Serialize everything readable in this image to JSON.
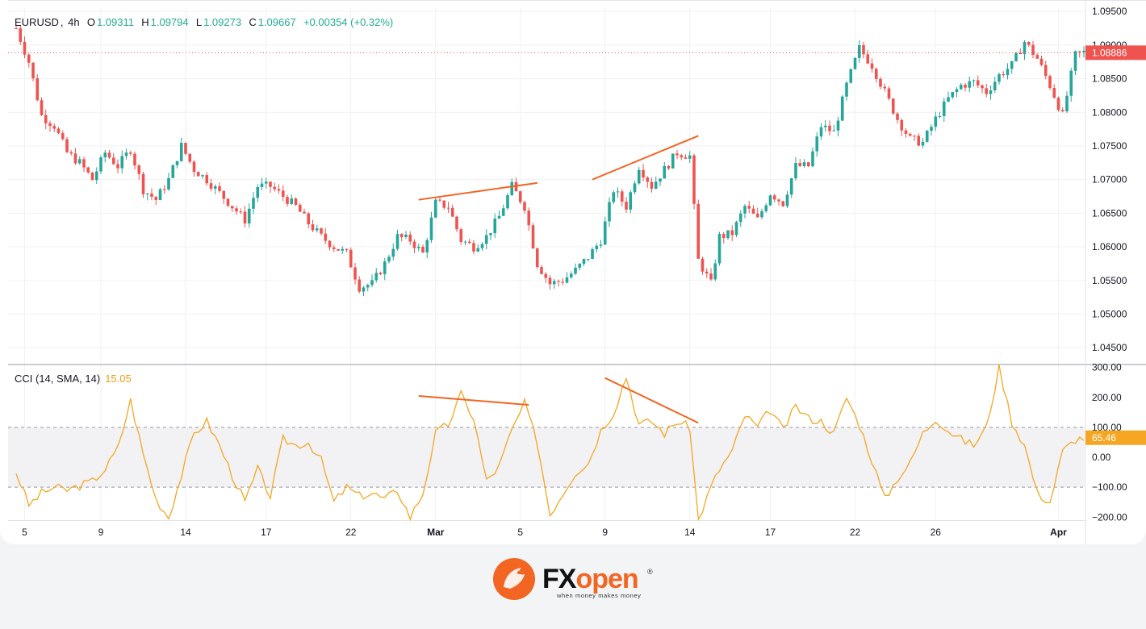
{
  "symbol": {
    "ticker": "EURUSD",
    "timeframe": "4h",
    "open_label": "O",
    "open": "1.09311",
    "high_label": "H",
    "high": "1.09794",
    "low_label": "L",
    "low": "1.09273",
    "close_label": "C",
    "close": "1.09667",
    "change": "+0.00354 (+0.32%)"
  },
  "current_price": "1.08886",
  "cci": {
    "label": "CCI (14, SMA, 14)",
    "value": "15.05",
    "current": "65.46"
  },
  "brand": {
    "name_fx": "FX",
    "name_open": "open",
    "reg": "®",
    "tagline": "when money makes money"
  },
  "colors": {
    "up": "#26a69a",
    "down": "#ef5350",
    "cci_line": "#f5a623",
    "trendline": "#f26522",
    "price_badge": "#ef5350",
    "cci_badge": "#f5a623",
    "brand_orange": "#f26522"
  },
  "chart_data": [
    {
      "type": "candlestick",
      "title": "EURUSD, 4h",
      "y_axis_ticks": [
        "1.09500",
        "1.09000",
        "1.08500",
        "1.08000",
        "1.07500",
        "1.07000",
        "1.06500",
        "1.06000",
        "1.05500",
        "1.05000",
        "1.04500"
      ],
      "ylim": [
        1.0425,
        1.0955
      ],
      "x_axis_ticks": [
        "5",
        "9",
        "14",
        "17",
        "22",
        "Mar",
        "5",
        "9",
        "14",
        "17",
        "22",
        "26",
        "Apr"
      ],
      "x_axis_bold": [
        "Mar",
        "Apr"
      ],
      "price_keypoints": [
        [
          0,
          1.0925
        ],
        [
          3,
          1.0875
        ],
        [
          6,
          1.0795
        ],
        [
          9,
          1.078
        ],
        [
          12,
          1.074
        ],
        [
          15,
          1.0725
        ],
        [
          18,
          1.07
        ],
        [
          21,
          1.074
        ],
        [
          24,
          1.072
        ],
        [
          27,
          1.0745
        ],
        [
          30,
          1.0685
        ],
        [
          33,
          1.067
        ],
        [
          36,
          1.07
        ],
        [
          39,
          1.075
        ],
        [
          42,
          1.0715
        ],
        [
          45,
          1.07
        ],
        [
          48,
          1.068
        ],
        [
          51,
          1.066
        ],
        [
          54,
          1.064
        ],
        [
          57,
          1.069
        ],
        [
          60,
          1.069
        ],
        [
          63,
          1.0675
        ],
        [
          66,
          1.066
        ],
        [
          69,
          1.0635
        ],
        [
          72,
          1.0615
        ],
        [
          75,
          1.06
        ],
        [
          78,
          1.059
        ],
        [
          81,
          1.054
        ],
        [
          84,
          1.0545
        ],
        [
          87,
          1.0575
        ],
        [
          90,
          1.0615
        ],
        [
          93,
          1.061
        ],
        [
          96,
          1.059
        ],
        [
          99,
          1.0665
        ],
        [
          102,
          1.066
        ],
        [
          105,
          1.061
        ],
        [
          108,
          1.06
        ],
        [
          111,
          1.0615
        ],
        [
          114,
          1.0645
        ],
        [
          117,
          1.069
        ],
        [
          120,
          1.066
        ],
        [
          123,
          1.0575
        ],
        [
          126,
          1.0545
        ],
        [
          129,
          1.055
        ],
        [
          132,
          1.0565
        ],
        [
          135,
          1.0585
        ],
        [
          138,
          1.061
        ],
        [
          141,
          1.0685
        ],
        [
          144,
          1.066
        ],
        [
          147,
          1.072
        ],
        [
          150,
          1.069
        ],
        [
          153,
          1.0715
        ],
        [
          156,
          1.074
        ],
        [
          159,
          1.0735
        ],
        [
          161,
          1.058
        ],
        [
          164,
          1.0545
        ],
        [
          166,
          1.0615
        ],
        [
          169,
          1.062
        ],
        [
          172,
          1.066
        ],
        [
          175,
          1.064
        ],
        [
          178,
          1.068
        ],
        [
          181,
          1.0665
        ],
        [
          184,
          1.072
        ],
        [
          187,
          1.072
        ],
        [
          190,
          1.078
        ],
        [
          193,
          1.077
        ],
        [
          196,
          1.084
        ],
        [
          199,
          1.0895
        ],
        [
          202,
          1.087
        ],
        [
          205,
          1.083
        ],
        [
          208,
          1.079
        ],
        [
          211,
          1.076
        ],
        [
          214,
          1.0755
        ],
        [
          217,
          1.079
        ],
        [
          220,
          1.082
        ],
        [
          223,
          1.084
        ],
        [
          226,
          1.0845
        ],
        [
          229,
          1.083
        ],
        [
          232,
          1.0855
        ],
        [
          235,
          1.087
        ],
        [
          238,
          1.0905
        ],
        [
          241,
          1.088
        ],
        [
          244,
          1.084
        ],
        [
          247,
          1.0795
        ],
        [
          250,
          1.0885
        ],
        [
          252,
          1.0889
        ]
      ],
      "trendlines": [
        {
          "from": [
            "Feb 29",
            1.067
          ],
          "to": [
            "Mar 7",
            1.0695
          ]
        },
        {
          "from": [
            "Mar 10",
            1.07
          ],
          "to": [
            "Mar 15",
            1.0765
          ]
        }
      ]
    },
    {
      "type": "line",
      "title": "CCI (14, SMA, 14)",
      "y_axis_ticks": [
        "300.00",
        "200.00",
        "100.00",
        "0.00",
        "−100.00",
        "−200.00"
      ],
      "ylim": [
        -210,
        310
      ],
      "band": [
        -100,
        100
      ],
      "cci_keypoints": [
        [
          0,
          -50
        ],
        [
          3,
          -160
        ],
        [
          6,
          -120
        ],
        [
          9,
          -100
        ],
        [
          12,
          -110
        ],
        [
          15,
          -95
        ],
        [
          18,
          -80
        ],
        [
          21,
          -40
        ],
        [
          24,
          30
        ],
        [
          27,
          190
        ],
        [
          30,
          10
        ],
        [
          33,
          -140
        ],
        [
          36,
          -200
        ],
        [
          39,
          -60
        ],
        [
          42,
          80
        ],
        [
          45,
          120
        ],
        [
          48,
          40
        ],
        [
          51,
          -60
        ],
        [
          54,
          -150
        ],
        [
          57,
          -40
        ],
        [
          60,
          -130
        ],
        [
          63,
          60
        ],
        [
          66,
          40
        ],
        [
          69,
          50
        ],
        [
          72,
          -10
        ],
        [
          75,
          -150
        ],
        [
          78,
          -100
        ],
        [
          81,
          -130
        ],
        [
          84,
          -120
        ],
        [
          87,
          -140
        ],
        [
          90,
          -110
        ],
        [
          93,
          -200
        ],
        [
          96,
          -120
        ],
        [
          99,
          80
        ],
        [
          102,
          110
        ],
        [
          105,
          210
        ],
        [
          108,
          130
        ],
        [
          111,
          -80
        ],
        [
          114,
          -30
        ],
        [
          117,
          90
        ],
        [
          120,
          180
        ],
        [
          123,
          50
        ],
        [
          126,
          -190
        ],
        [
          129,
          -120
        ],
        [
          132,
          -50
        ],
        [
          135,
          -20
        ],
        [
          138,
          90
        ],
        [
          141,
          150
        ],
        [
          144,
          270
        ],
        [
          147,
          110
        ],
        [
          150,
          120
        ],
        [
          153,
          80
        ],
        [
          156,
          120
        ],
        [
          159,
          100
        ],
        [
          161,
          -210
        ],
        [
          164,
          -100
        ],
        [
          166,
          -40
        ],
        [
          169,
          20
        ],
        [
          172,
          140
        ],
        [
          175,
          100
        ],
        [
          178,
          160
        ],
        [
          181,
          90
        ],
        [
          184,
          170
        ],
        [
          187,
          130
        ],
        [
          190,
          120
        ],
        [
          193,
          80
        ],
        [
          196,
          200
        ],
        [
          199,
          110
        ],
        [
          202,
          -10
        ],
        [
          205,
          -140
        ],
        [
          208,
          -70
        ],
        [
          211,
          -20
        ],
        [
          214,
          80
        ],
        [
          217,
          130
        ],
        [
          220,
          90
        ],
        [
          223,
          60
        ],
        [
          226,
          40
        ],
        [
          229,
          100
        ],
        [
          232,
          300
        ],
        [
          235,
          120
        ],
        [
          238,
          40
        ],
        [
          241,
          -120
        ],
        [
          244,
          -150
        ],
        [
          247,
          20
        ],
        [
          250,
          60
        ],
        [
          252,
          65
        ]
      ],
      "trendlines": [
        {
          "from": [
            "Feb 29",
            205
          ],
          "to": [
            "Mar 7",
            175
          ]
        },
        {
          "from": [
            "Mar 11",
            265
          ],
          "to": [
            "Mar 15",
            115
          ]
        }
      ]
    }
  ]
}
